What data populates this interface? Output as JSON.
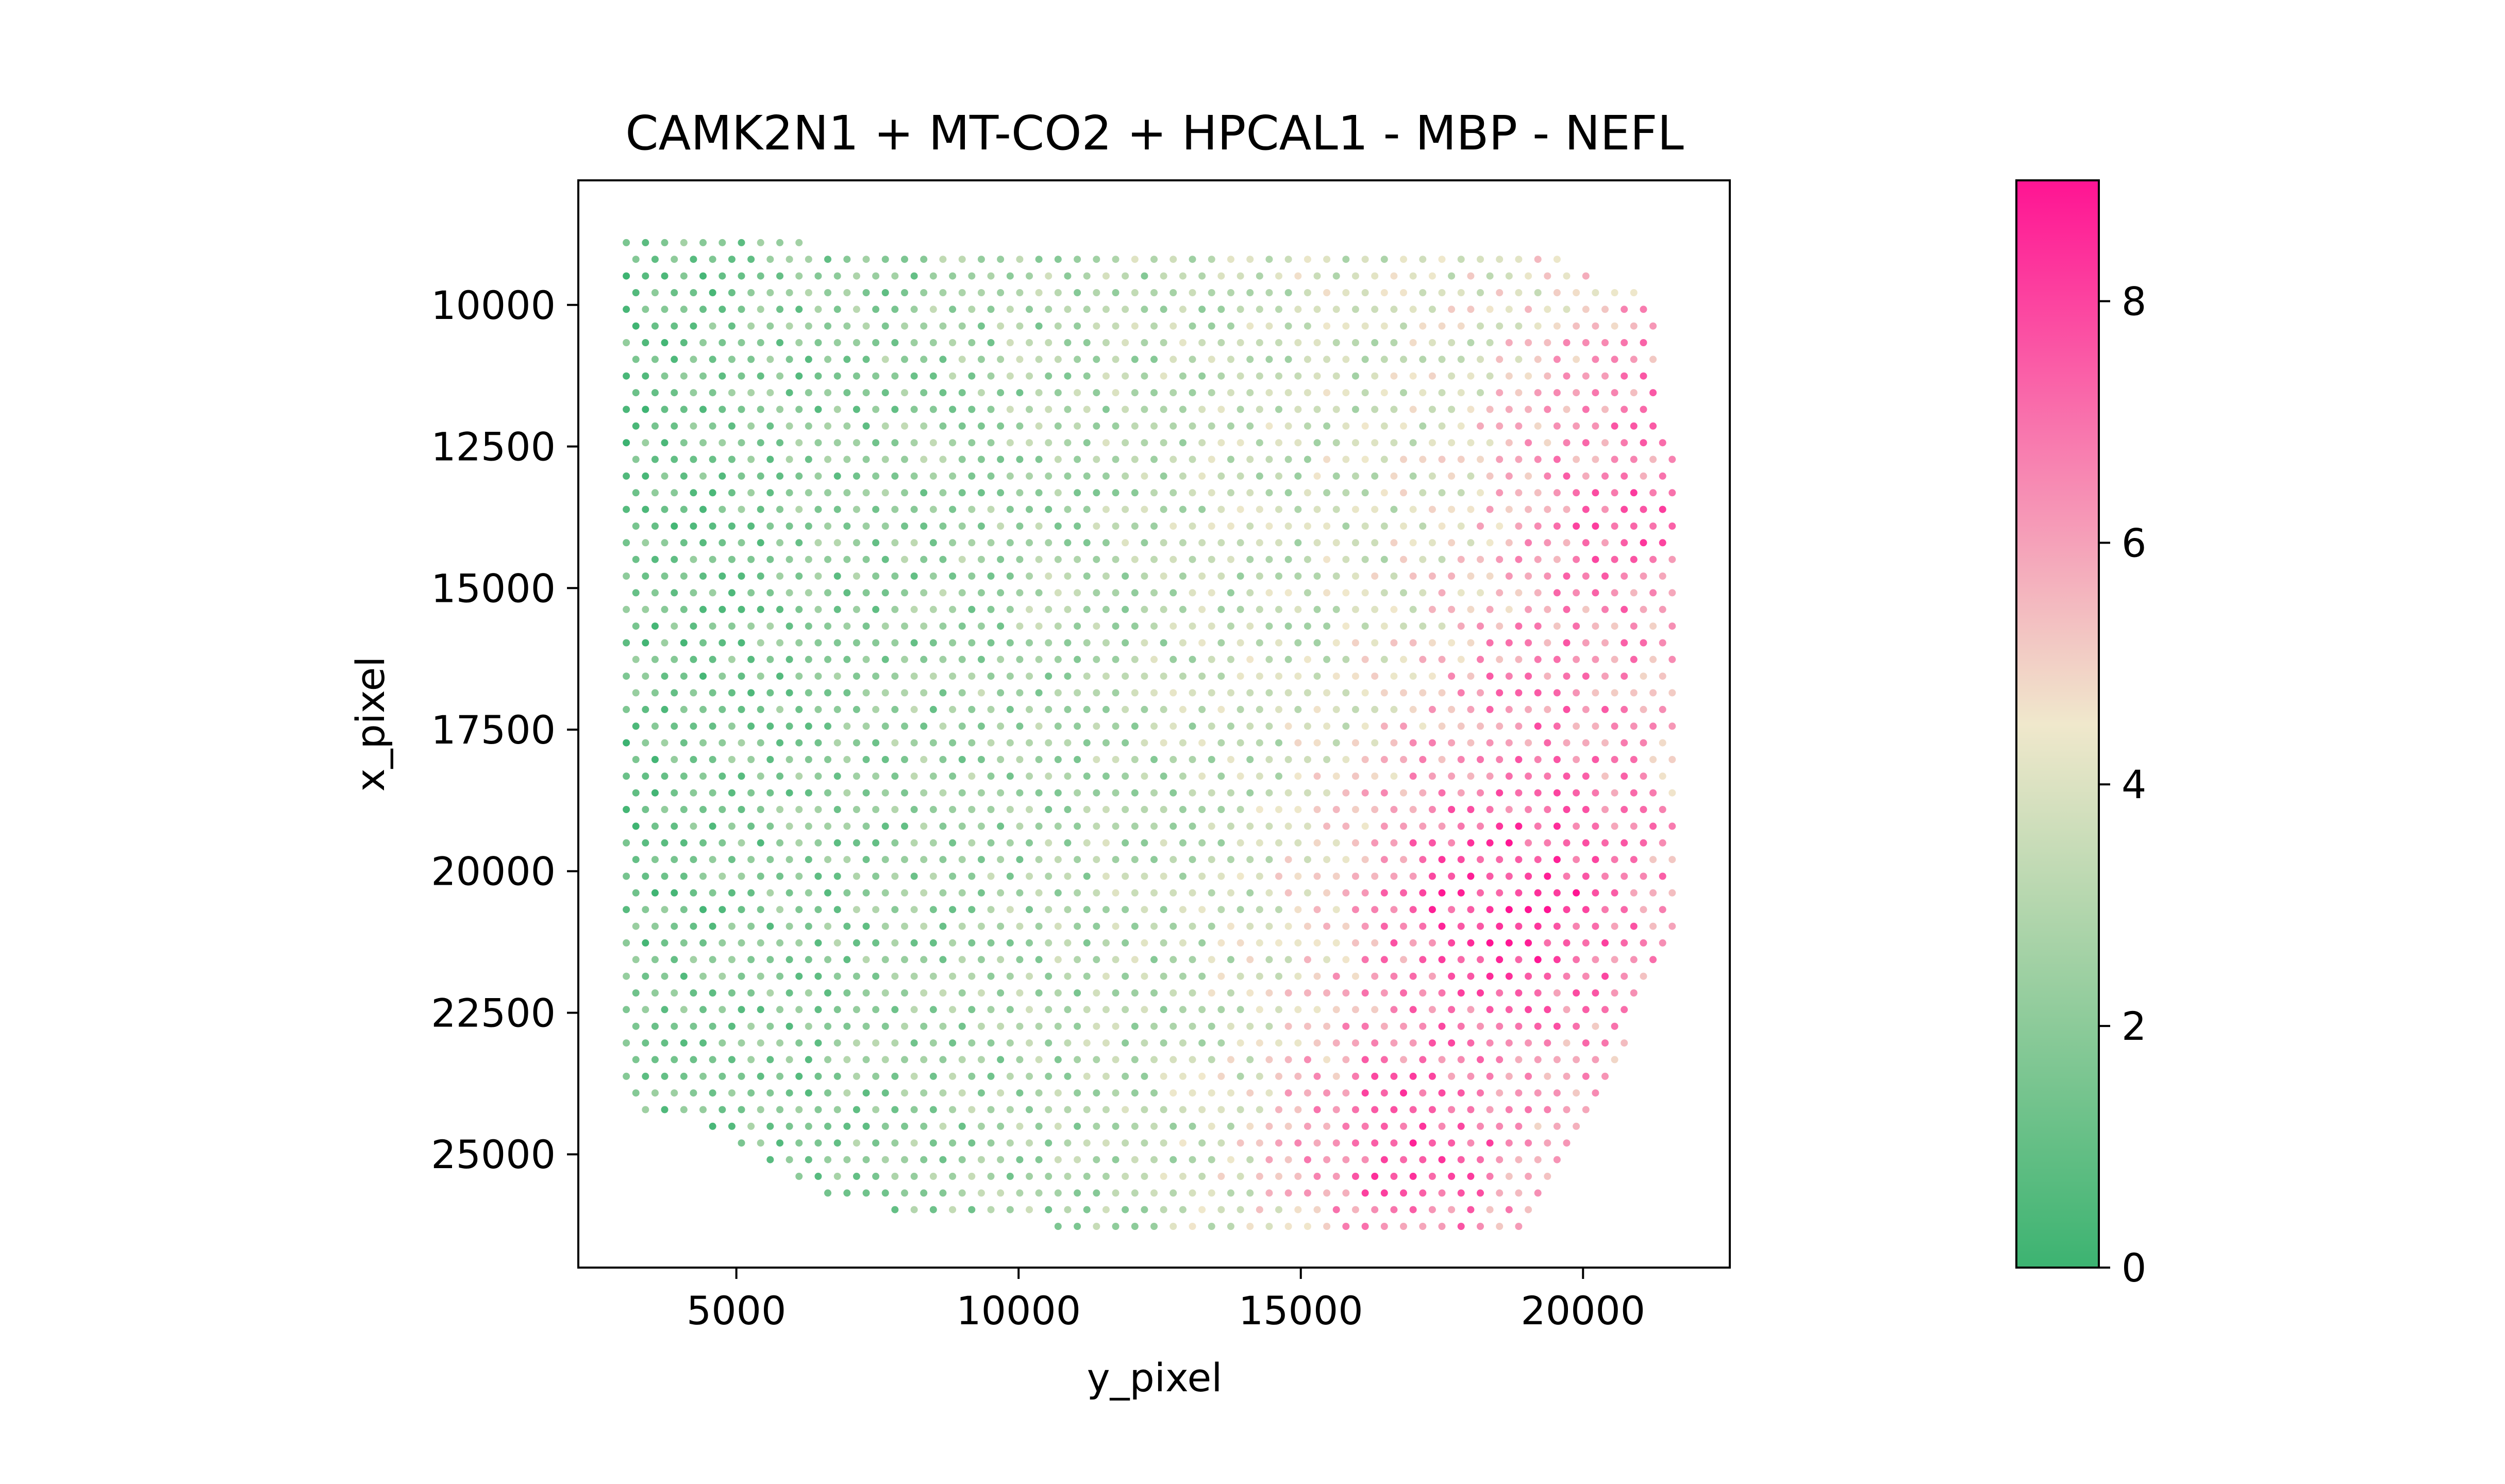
{
  "chart_data": {
    "type": "scatter",
    "title": "CAMK2N1 + MT-CO2 + HPCAL1 - MBP - NEFL",
    "xlabel": "y_pixel",
    "ylabel": "x_pixel",
    "xlim": [
      2200,
      22600
    ],
    "ylim": [
      27000,
      7800
    ],
    "y_inverted": true,
    "grid": false,
    "xticks": [
      5000,
      10000,
      15000,
      20000
    ],
    "xtick_labels": [
      "5000",
      "10000",
      "15000",
      "20000"
    ],
    "yticks": [
      10000,
      12500,
      15000,
      17500,
      20000,
      22500,
      25000
    ],
    "ytick_labels": [
      "10000",
      "12500",
      "15000",
      "17500",
      "20000",
      "22500",
      "25000"
    ],
    "colorbar": {
      "range": [
        0,
        9
      ],
      "ticks": [
        0,
        2,
        4,
        6,
        8
      ],
      "tick_labels": [
        "0",
        "2",
        "4",
        "6",
        "8"
      ],
      "colormap": [
        "#3cb371",
        "#f0e8cc",
        "#ff1493"
      ]
    },
    "grid_step": 340,
    "tissue_boundary": [
      [
        3050,
        8900
      ],
      [
        6300,
        8900
      ],
      [
        9500,
        8950
      ],
      [
        12600,
        8950
      ],
      [
        15800,
        8950
      ],
      [
        18700,
        8950
      ],
      [
        19300,
        9000
      ],
      [
        20400,
        9500
      ],
      [
        21300,
        9900
      ],
      [
        21400,
        12200
      ],
      [
        21700,
        12600
      ],
      [
        21700,
        21000
      ],
      [
        21000,
        22500
      ],
      [
        20400,
        23800
      ],
      [
        19900,
        25000
      ],
      [
        19200,
        26000
      ],
      [
        19050,
        26350
      ],
      [
        15500,
        26300
      ],
      [
        11300,
        26350
      ],
      [
        9000,
        26100
      ],
      [
        7000,
        25900
      ],
      [
        5700,
        25300
      ],
      [
        4800,
        24600
      ],
      [
        3050,
        24200
      ]
    ],
    "hotspots": [
      {
        "x": 18700,
        "y": 20500,
        "value": 8.5,
        "spread": 2000
      },
      {
        "x": 17000,
        "y": 24900,
        "value": 7.8,
        "spread": 1700
      },
      {
        "x": 20800,
        "y": 13800,
        "value": 7.5,
        "spread": 1500
      },
      {
        "x": 19300,
        "y": 16900,
        "value": 6.8,
        "spread": 1300
      },
      {
        "x": 21000,
        "y": 11500,
        "value": 6.5,
        "spread": 1200
      }
    ],
    "gradient": {
      "value_at_x_min": 1.2,
      "value_at_x_max": 4.8
    }
  }
}
